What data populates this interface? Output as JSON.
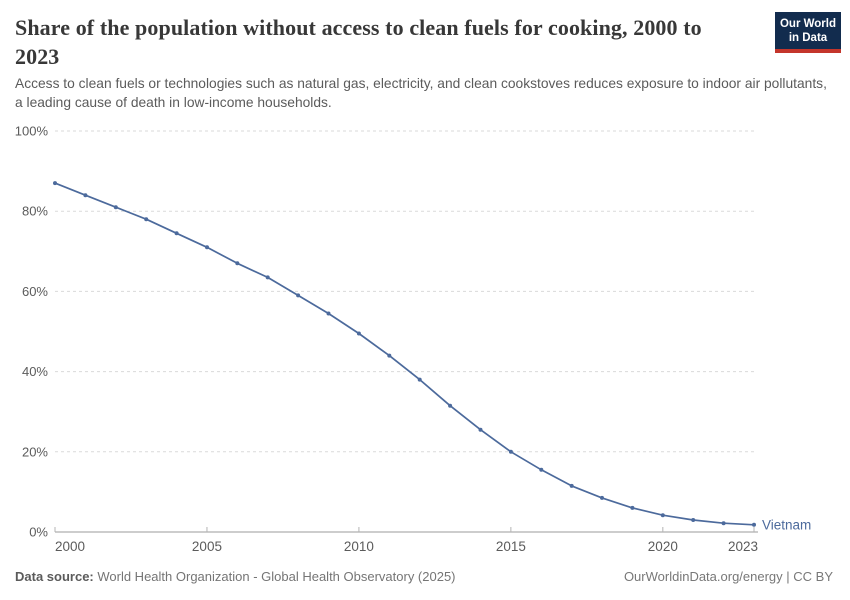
{
  "header": {
    "title": "Share of the population without access to clean fuels for cooking, 2000 to 2023",
    "subtitle": "Access to clean fuels or technologies such as natural gas, electricity, and clean cookstoves reduces exposure to indoor air pollutants, a leading cause of death in low-income households."
  },
  "logo": {
    "line1": "Our World",
    "line2": "in Data",
    "bg_color": "#122c4e",
    "accent_color": "#c4352b"
  },
  "chart_data": {
    "type": "line",
    "title": "Share of the population without access to clean fuels for cooking, 2000 to 2023",
    "unit": "%",
    "x": [
      2000,
      2001,
      2002,
      2003,
      2004,
      2005,
      2006,
      2007,
      2008,
      2009,
      2010,
      2011,
      2012,
      2013,
      2014,
      2015,
      2016,
      2017,
      2018,
      2019,
      2020,
      2021,
      2022,
      2023
    ],
    "series": [
      {
        "name": "Vietnam",
        "color": "#4c6a9c",
        "values": [
          87,
          84,
          81,
          78,
          74.5,
          71,
          67,
          63.5,
          59,
          54.5,
          49.5,
          44,
          38,
          31.5,
          25.5,
          20,
          15.5,
          11.5,
          8.5,
          6,
          4.2,
          3,
          2.2,
          1.8
        ]
      }
    ],
    "xlim": [
      2000,
      2023
    ],
    "ylim": [
      0,
      100
    ],
    "xticks": [
      2000,
      2005,
      2010,
      2015,
      2020,
      2023
    ],
    "yticks": [
      0,
      20,
      40,
      60,
      80,
      100
    ],
    "ytick_suffix": "%",
    "grid": "horizontal-dashed",
    "legend_position": "end-of-line-label",
    "marker": "dot"
  },
  "footer": {
    "source_label": "Data source:",
    "source_text": " World Health Organization - Global Health Observatory (2025)",
    "right_text": "OurWorldinData.org/energy | CC BY"
  }
}
